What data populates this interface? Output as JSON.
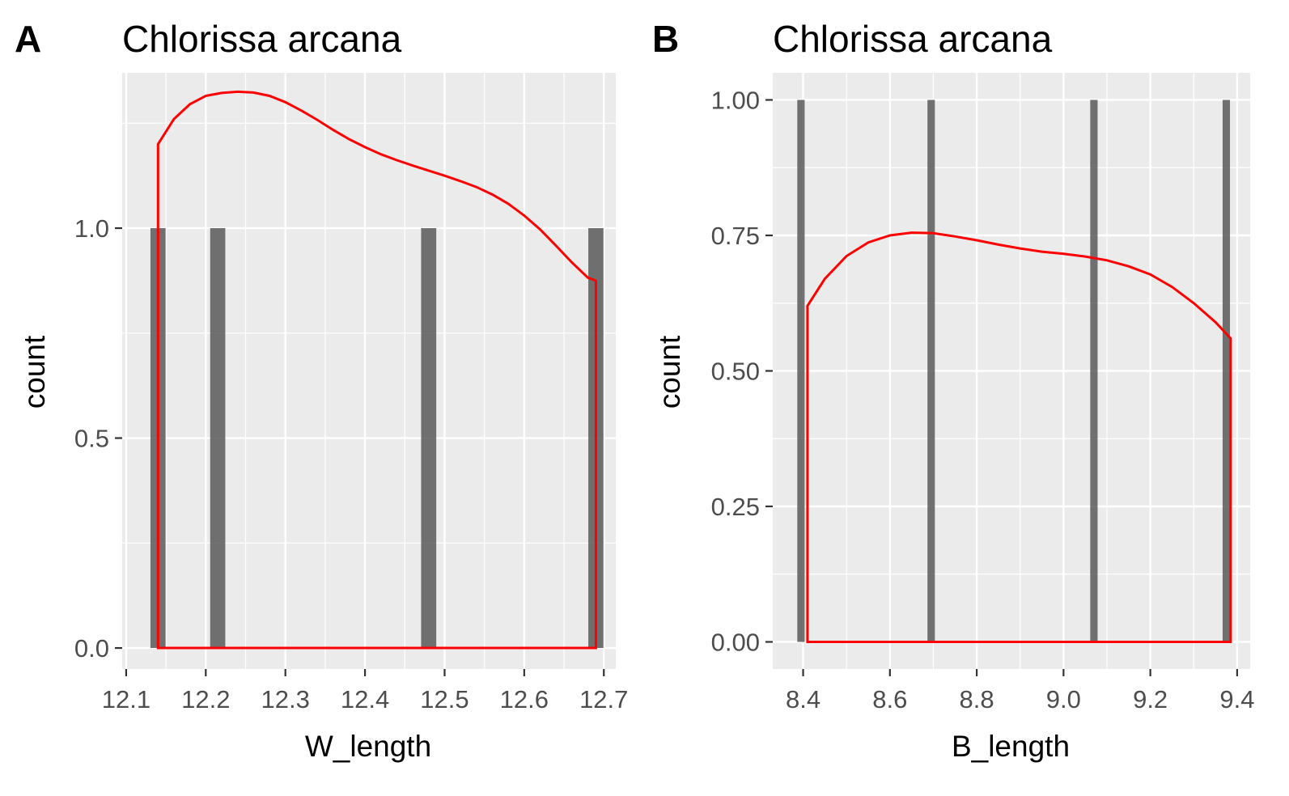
{
  "chart_data": [
    {
      "tag": "A",
      "type": "bar",
      "title": "Chlorissa arcana",
      "xlabel": "W_length",
      "ylabel": "count",
      "xlim": [
        12.095,
        12.715
      ],
      "ylim": [
        -0.05,
        1.37
      ],
      "xticks": [
        12.1,
        12.2,
        12.3,
        12.4,
        12.5,
        12.6,
        12.7
      ],
      "xtick_labels": [
        "12.1",
        "12.2",
        "12.3",
        "12.4",
        "12.5",
        "12.6",
        "12.7"
      ],
      "yticks": [
        0.0,
        0.5,
        1.0
      ],
      "ytick_labels": [
        "0.0",
        "0.5",
        "1.0"
      ],
      "bar_width": 0.019,
      "bars": [
        {
          "x": 12.14,
          "count": 1
        },
        {
          "x": 12.215,
          "count": 1
        },
        {
          "x": 12.48,
          "count": 1
        },
        {
          "x": 12.69,
          "count": 1
        }
      ],
      "density": {
        "color": "#ff0000",
        "x": [
          12.14,
          12.16,
          12.18,
          12.2,
          12.22,
          12.24,
          12.26,
          12.28,
          12.3,
          12.32,
          12.34,
          12.36,
          12.38,
          12.4,
          12.42,
          12.44,
          12.46,
          12.48,
          12.5,
          12.52,
          12.54,
          12.56,
          12.58,
          12.6,
          12.62,
          12.64,
          12.66,
          12.68,
          12.69
        ],
        "y": [
          1.2,
          1.26,
          1.295,
          1.315,
          1.322,
          1.325,
          1.323,
          1.315,
          1.3,
          1.28,
          1.258,
          1.234,
          1.212,
          1.193,
          1.176,
          1.162,
          1.149,
          1.137,
          1.125,
          1.112,
          1.098,
          1.08,
          1.058,
          1.03,
          0.997,
          0.958,
          0.918,
          0.882,
          0.875
        ]
      }
    },
    {
      "tag": "B",
      "type": "bar",
      "title": "Chlorissa arcana",
      "xlabel": "B_length",
      "ylabel": "count",
      "xlim": [
        8.33,
        9.43
      ],
      "ylim": [
        -0.05,
        1.05
      ],
      "xticks": [
        8.4,
        8.6,
        8.8,
        9.0,
        9.2,
        9.4
      ],
      "xtick_labels": [
        "8.4",
        "8.6",
        "8.8",
        "9.0",
        "9.2",
        "9.4"
      ],
      "yticks": [
        0.0,
        0.25,
        0.5,
        0.75,
        1.0
      ],
      "ytick_labels": [
        "0.00",
        "0.25",
        "0.50",
        "0.75",
        "1.00"
      ],
      "bar_width": 0.017,
      "bars": [
        {
          "x": 8.395,
          "count": 1
        },
        {
          "x": 8.695,
          "count": 1
        },
        {
          "x": 9.07,
          "count": 1
        },
        {
          "x": 9.375,
          "count": 1
        }
      ],
      "density": {
        "color": "#ff0000",
        "x": [
          8.41,
          8.45,
          8.5,
          8.55,
          8.6,
          8.65,
          8.7,
          8.75,
          8.8,
          8.85,
          8.9,
          8.95,
          9.0,
          9.05,
          9.1,
          9.15,
          9.2,
          9.25,
          9.3,
          9.35,
          9.385
        ],
        "y": [
          0.62,
          0.67,
          0.712,
          0.737,
          0.75,
          0.755,
          0.754,
          0.748,
          0.741,
          0.733,
          0.726,
          0.72,
          0.716,
          0.711,
          0.704,
          0.693,
          0.678,
          0.655,
          0.625,
          0.59,
          0.56
        ]
      }
    }
  ]
}
